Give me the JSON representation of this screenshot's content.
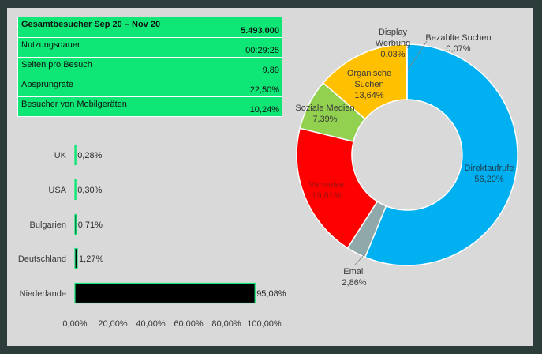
{
  "stats": {
    "title": "Gesamtbesucher Sep 20 – Nov 20",
    "total": "5.493.000",
    "rows": [
      {
        "label": "Nutzungsdauer",
        "value": "00:29:25"
      },
      {
        "label": "Seiten pro Besuch",
        "value": "9,89"
      },
      {
        "label": "Absprungrate",
        "value": "22,50%"
      },
      {
        "label": "Besucher von Mobilgeräten",
        "value": "10,24%"
      }
    ]
  },
  "chart_data": [
    {
      "type": "bar",
      "orientation": "horizontal",
      "categories": [
        "UK",
        "USA",
        "Bulgarien",
        "Deutschland",
        "Niederlande"
      ],
      "values": [
        0.28,
        0.3,
        0.71,
        1.27,
        95.08
      ],
      "data_labels": [
        "0,28%",
        "0,30%",
        "0,71%",
        "1,27%",
        "95,08%"
      ],
      "xlim": [
        0,
        100
      ],
      "x_ticks": [
        "0,00%",
        "20,00%",
        "40,00%",
        "60,00%",
        "80,00%",
        "100,00%"
      ],
      "bar_color": "#000000",
      "bar_outline": "#0ee776",
      "grid": false
    },
    {
      "type": "pie",
      "donut": true,
      "slices": [
        {
          "label": "Direktaufrufe",
          "value": 56.2,
          "display": "56,20%",
          "color": "#00b0f0"
        },
        {
          "label": "Email",
          "value": 2.86,
          "display": "2,86%",
          "color": "#8fa8aa"
        },
        {
          "label": "Verweise",
          "value": 19.81,
          "display": "19,81%",
          "color": "#ff0000"
        },
        {
          "label": "Soziale Medien",
          "value": 7.39,
          "display": "7,39%",
          "color": "#92d050"
        },
        {
          "label": "Organische Suchen",
          "value": 13.64,
          "display": "13,64%",
          "color": "#ffc000"
        },
        {
          "label": "Display Werbung",
          "value": 0.03,
          "display": "0,03%",
          "color": "#ffc000"
        },
        {
          "label": "Bezahlte Suchen",
          "value": 0.07,
          "display": "0,07%",
          "color": "#00b0f0"
        }
      ]
    }
  ]
}
